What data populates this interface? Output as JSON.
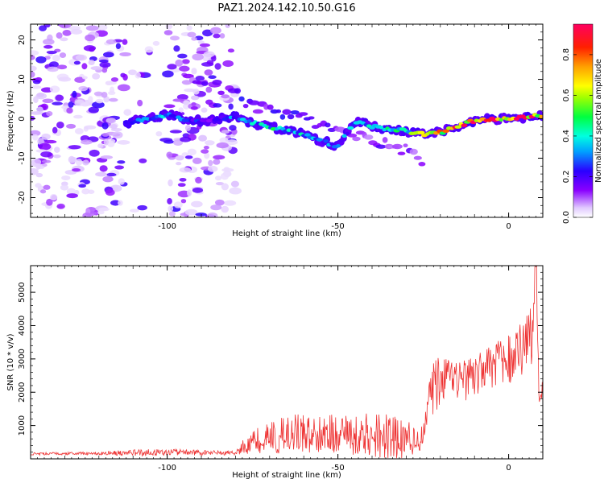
{
  "title": "PAZ1.2024.142.10.50.G16",
  "colors": {
    "snr_line": "#ee3333",
    "axis": "#000000"
  },
  "chart_data": [
    {
      "type": "heatmap",
      "xlabel": "Height of straight line (km)",
      "ylabel": "Frequency (Hz)",
      "xlim": [
        -140,
        10
      ],
      "ylim": [
        -25,
        24
      ],
      "x_ticks": [
        -100,
        -50,
        0
      ],
      "x_tick_labels": [
        "-100",
        "-50",
        "0"
      ],
      "y_ticks": [
        -20,
        -10,
        0,
        10,
        20
      ],
      "y_tick_labels": [
        "-20",
        "-10",
        "0",
        "10",
        "20"
      ],
      "colorbar": {
        "label": "Normalized spectral amplitude",
        "range": [
          0,
          0.95
        ],
        "ticks": [
          0.0,
          0.2,
          0.4,
          0.6,
          0.8
        ],
        "tick_labels": [
          "0.0",
          "0.2",
          "0.4",
          "0.6",
          "0.8"
        ],
        "colormap": "gist_rainbow_r"
      },
      "ridge": {
        "x": [
          -112,
          -105,
          -100,
          -95,
          -90,
          -85,
          -80,
          -75,
          -70,
          -65,
          -60,
          -55,
          -50,
          -45,
          -40,
          -35,
          -30,
          -25,
          -20,
          -15,
          -10,
          -5,
          0,
          5,
          10
        ],
        "y": [
          -1,
          0,
          1,
          0,
          -0.5,
          0,
          0.5,
          -1,
          -2,
          -3,
          -4,
          -5.5,
          -7,
          -0.5,
          -2,
          -2.5,
          -3,
          -4,
          -3.5,
          -2,
          -0.5,
          0,
          0,
          0.5,
          0.8
        ],
        "amp": [
          0.3,
          0.35,
          0.4,
          0.35,
          0.2,
          0.25,
          0.35,
          0.4,
          0.45,
          0.45,
          0.4,
          0.35,
          0.3,
          0.4,
          0.45,
          0.5,
          0.55,
          0.6,
          0.75,
          0.85,
          0.88,
          0.92,
          0.9,
          0.92,
          0.85
        ]
      },
      "noise_region_x": [
        -140,
        -80
      ],
      "branch": {
        "x": [
          -95,
          -85,
          -78,
          -70,
          -60,
          -50,
          -40,
          -30,
          -25
        ],
        "y": [
          10,
          8,
          5,
          2,
          0,
          -2,
          -5,
          -8,
          -11
        ],
        "amp": [
          0.15,
          0.15,
          0.2,
          0.2,
          0.2,
          0.15,
          0.15,
          0.15,
          0.15
        ]
      }
    },
    {
      "type": "line",
      "xlabel": "Height of straight line (km)",
      "ylabel": "SNR (10 * v/v)",
      "xlim": [
        -140,
        10
      ],
      "ylim": [
        0,
        5800
      ],
      "x_ticks": [
        -100,
        -50,
        0
      ],
      "x_tick_labels": [
        "-100",
        "-50",
        "0"
      ],
      "y_ticks": [
        1000,
        2000,
        3000,
        4000,
        5000
      ],
      "y_tick_labels": [
        "1000",
        "2000",
        "3000",
        "4000",
        "5000"
      ],
      "series": [
        {
          "x": [
            -140,
            -130,
            -120,
            -110,
            -100,
            -90,
            -80,
            -78,
            -72,
            -66,
            -60,
            -55,
            -50,
            -45,
            -40,
            -35,
            -30,
            -26,
            -25,
            -24,
            -22,
            -20,
            -15,
            -10,
            -5,
            0,
            2,
            5,
            7,
            8,
            9,
            10
          ],
          "y": [
            150,
            160,
            170,
            180,
            200,
            180,
            180,
            350,
            600,
            700,
            800,
            800,
            750,
            700,
            700,
            650,
            600,
            500,
            800,
            1400,
            2200,
            2400,
            2300,
            2500,
            2800,
            3000,
            3200,
            3300,
            3800,
            5800,
            1500,
            2200
          ],
          "amp": [
            40,
            40,
            50,
            100,
            100,
            80,
            60,
            200,
            450,
            550,
            600,
            650,
            600,
            650,
            700,
            700,
            600,
            300,
            400,
            700,
            900,
            800,
            600,
            700,
            700,
            800,
            900,
            900,
            1200,
            0,
            300,
            500
          ]
        }
      ]
    }
  ]
}
